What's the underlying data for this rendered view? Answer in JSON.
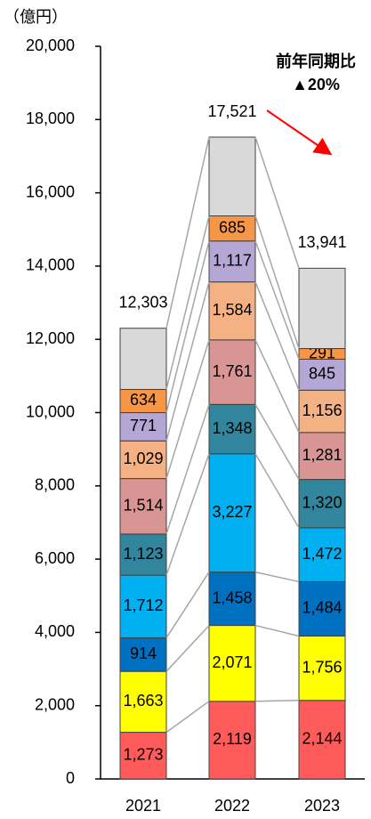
{
  "chart_data": {
    "type": "stacked_bar",
    "y_axis_label": "（億円）",
    "annotation": [
      "前年同期比",
      "▲20%"
    ],
    "annotation_color": "#ff0000",
    "categories": [
      "2021",
      "2022",
      "2023"
    ],
    "ylim": [
      0,
      20000
    ],
    "yticks": [
      0,
      {
        "value": 2000,
        "label": "2,000"
      },
      {
        "value": 4000,
        "label": "4,000"
      },
      {
        "value": 6000,
        "label": "6,000"
      },
      {
        "value": 8000,
        "label": "8,000"
      },
      {
        "value": 10000,
        "label": "10,000"
      },
      {
        "value": 12000,
        "label": "12,000"
      },
      {
        "value": 14000,
        "label": "14,000"
      },
      {
        "value": 16000,
        "label": "16,000"
      },
      {
        "value": 18000,
        "label": "18,000"
      },
      {
        "value": 20000,
        "label": "20,000"
      }
    ],
    "series": [
      {
        "color": "#ff5b5b",
        "label_color": "#000000",
        "values": [
          1273,
          2119,
          2144
        ],
        "value_labels": [
          "1,273",
          "2,119",
          "2,144"
        ]
      },
      {
        "color": "#ffff00",
        "label_color": "#000000",
        "values": [
          1663,
          2071,
          1756
        ],
        "value_labels": [
          "1,663",
          "2,071",
          "1,756"
        ]
      },
      {
        "color": "#0070c0",
        "label_color": "#ffffff",
        "values": [
          914,
          1458,
          1484
        ],
        "value_labels": [
          "914",
          "1,458",
          "1,484"
        ]
      },
      {
        "color": "#00b0f0",
        "label_color": "#000000",
        "values": [
          1712,
          3227,
          1472
        ],
        "value_labels": [
          "1,712",
          "3,227",
          "1,472"
        ]
      },
      {
        "color": "#31859c",
        "label_color": "#000000",
        "values": [
          1123,
          1348,
          1320
        ],
        "value_labels": [
          "1,123",
          "1,348",
          "1,320"
        ]
      },
      {
        "color": "#d99594",
        "label_color": "#000000",
        "values": [
          1514,
          1761,
          1281
        ],
        "value_labels": [
          "1,514",
          "1,761",
          "1,281"
        ]
      },
      {
        "color": "#f4b183",
        "label_color": "#000000",
        "values": [
          1029,
          1584,
          1156
        ],
        "value_labels": [
          "1,029",
          "1,584",
          "1,156"
        ]
      },
      {
        "color": "#b4a7d6",
        "label_color": "#000000",
        "values": [
          771,
          1117,
          845
        ],
        "value_labels": [
          "771",
          "1,117",
          "845"
        ]
      },
      {
        "color": "#f79646",
        "label_color": "#000000",
        "values": [
          634,
          685,
          291
        ],
        "value_labels": [
          "634",
          "685",
          "291"
        ]
      },
      {
        "color": "#d9d9d9",
        "values": [
          1670,
          2151,
          2192
        ]
      }
    ],
    "totals": [
      12303,
      17521,
      13941
    ],
    "total_labels": [
      "12,303",
      "17,521",
      "13,941"
    ]
  }
}
